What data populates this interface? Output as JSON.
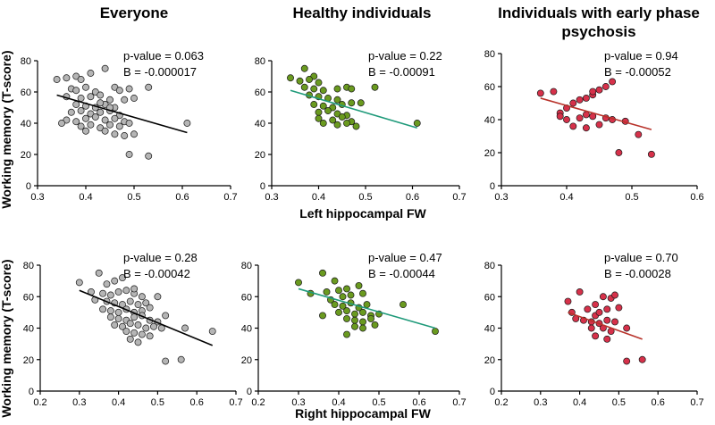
{
  "figure": {
    "column_titles": [
      "Everyone",
      "Healthy individuals",
      "Individuals with early phase psychosis"
    ],
    "row_ylabels": [
      "Working memory (T-score)",
      "Working memory (T-score)"
    ],
    "row_xlabels": [
      "Left hippocampal FW",
      "Right hippocampal FW"
    ]
  },
  "chart_data": [
    {
      "id": "left-everyone",
      "type": "scatter",
      "title": "Everyone",
      "ylabel": "Working memory (T-score)",
      "xlabel": "",
      "xlim": [
        0.3,
        0.7
      ],
      "ylim": [
        0,
        80
      ],
      "xticks": [
        0.3,
        0.4,
        0.5,
        0.6,
        0.7
      ],
      "xtick_labels": [
        "0.3",
        "0.4",
        "0.5",
        "0.6",
        "0.7"
      ],
      "yticks": [
        0,
        20,
        40,
        60,
        80
      ],
      "ytick_labels": [
        "0",
        "20",
        "40",
        "60",
        "80"
      ],
      "point_color": "#b5b5b5",
      "points": [
        [
          0.34,
          68
        ],
        [
          0.36,
          69
        ],
        [
          0.38,
          70
        ],
        [
          0.39,
          68
        ],
        [
          0.41,
          72
        ],
        [
          0.44,
          75
        ],
        [
          0.37,
          62
        ],
        [
          0.38,
          61
        ],
        [
          0.4,
          63
        ],
        [
          0.42,
          60
        ],
        [
          0.46,
          63
        ],
        [
          0.47,
          61
        ],
        [
          0.49,
          62
        ],
        [
          0.36,
          57
        ],
        [
          0.39,
          56
        ],
        [
          0.41,
          57
        ],
        [
          0.43,
          58
        ],
        [
          0.45,
          55
        ],
        [
          0.38,
          52
        ],
        [
          0.4,
          51
        ],
        [
          0.42,
          50
        ],
        [
          0.44,
          52
        ],
        [
          0.46,
          50
        ],
        [
          0.48,
          55
        ],
        [
          0.5,
          56
        ],
        [
          0.37,
          47
        ],
        [
          0.39,
          48
        ],
        [
          0.41,
          46
        ],
        [
          0.43,
          47
        ],
        [
          0.45,
          48
        ],
        [
          0.47,
          45
        ],
        [
          0.36,
          42
        ],
        [
          0.38,
          41
        ],
        [
          0.4,
          43
        ],
        [
          0.42,
          44
        ],
        [
          0.44,
          42
        ],
        [
          0.46,
          43
        ],
        [
          0.48,
          41
        ],
        [
          0.35,
          40
        ],
        [
          0.39,
          38
        ],
        [
          0.41,
          39
        ],
        [
          0.43,
          37
        ],
        [
          0.45,
          39
        ],
        [
          0.47,
          38
        ],
        [
          0.49,
          40
        ],
        [
          0.4,
          35
        ],
        [
          0.44,
          35
        ],
        [
          0.46,
          33
        ],
        [
          0.48,
          32
        ],
        [
          0.5,
          33
        ],
        [
          0.49,
          20
        ],
        [
          0.53,
          19
        ],
        [
          0.53,
          63
        ],
        [
          0.61,
          40
        ],
        [
          0.45,
          50
        ],
        [
          0.43,
          53
        ]
      ],
      "fit_line": [
        [
          0.34,
          58
        ],
        [
          0.61,
          34
        ]
      ],
      "fit_color": "#000000",
      "stats": [
        "p-value = 0.063",
        "B = -0.000017"
      ]
    },
    {
      "id": "left-healthy",
      "type": "scatter",
      "title": "Healthy individuals",
      "ylabel": "",
      "xlabel": "Left hippocampal FW",
      "xlim": [
        0.3,
        0.7
      ],
      "ylim": [
        0,
        80
      ],
      "xticks": [
        0.3,
        0.4,
        0.5,
        0.6,
        0.7
      ],
      "xtick_labels": [
        "0.3",
        "0.4",
        "0.5",
        "0.6",
        "0.7"
      ],
      "yticks": [
        0,
        20,
        40,
        60,
        80
      ],
      "ytick_labels": [
        "0",
        "20",
        "40",
        "60",
        "80"
      ],
      "point_color": "#6a9a1f",
      "points": [
        [
          0.34,
          69
        ],
        [
          0.37,
          75
        ],
        [
          0.39,
          70
        ],
        [
          0.36,
          67
        ],
        [
          0.38,
          68
        ],
        [
          0.4,
          66
        ],
        [
          0.37,
          63
        ],
        [
          0.39,
          62
        ],
        [
          0.41,
          61
        ],
        [
          0.44,
          62
        ],
        [
          0.46,
          63
        ],
        [
          0.47,
          62
        ],
        [
          0.38,
          58
        ],
        [
          0.4,
          57
        ],
        [
          0.42,
          56
        ],
        [
          0.44,
          55
        ],
        [
          0.39,
          52
        ],
        [
          0.41,
          51
        ],
        [
          0.43,
          50
        ],
        [
          0.45,
          52
        ],
        [
          0.47,
          53
        ],
        [
          0.49,
          53
        ],
        [
          0.4,
          47
        ],
        [
          0.42,
          48
        ],
        [
          0.44,
          46
        ],
        [
          0.46,
          45
        ],
        [
          0.4,
          43
        ],
        [
          0.43,
          42
        ],
        [
          0.45,
          44
        ],
        [
          0.47,
          41
        ],
        [
          0.41,
          40
        ],
        [
          0.44,
          39
        ],
        [
          0.46,
          40
        ],
        [
          0.48,
          38
        ],
        [
          0.52,
          63
        ],
        [
          0.61,
          40
        ]
      ],
      "fit_line": [
        [
          0.34,
          61
        ],
        [
          0.61,
          37
        ]
      ],
      "fit_color": "#1f9a7a",
      "stats": [
        "p-value = 0.22",
        "B = -0.00091"
      ]
    },
    {
      "id": "left-psychosis",
      "type": "scatter",
      "title": "Individuals with early phase psychosis",
      "ylabel": "",
      "xlabel": "",
      "xlim": [
        0.3,
        0.6
      ],
      "ylim": [
        0,
        80
      ],
      "xticks": [
        0.3,
        0.4,
        0.5,
        0.6
      ],
      "xtick_labels": [
        "0.3",
        "0.4",
        "0.5",
        "0.6"
      ],
      "yticks": [
        0,
        20,
        40,
        60,
        80
      ],
      "ytick_labels": [
        "0",
        "20",
        "40",
        "60",
        "80"
      ],
      "point_color": "#d6314a",
      "points": [
        [
          0.36,
          56
        ],
        [
          0.39,
          44
        ],
        [
          0.4,
          47
        ],
        [
          0.41,
          50
        ],
        [
          0.42,
          52
        ],
        [
          0.43,
          53
        ],
        [
          0.44,
          55
        ],
        [
          0.45,
          58
        ],
        [
          0.46,
          60
        ],
        [
          0.47,
          63
        ],
        [
          0.39,
          42
        ],
        [
          0.4,
          40
        ],
        [
          0.42,
          41
        ],
        [
          0.43,
          43
        ],
        [
          0.44,
          42
        ],
        [
          0.46,
          41
        ],
        [
          0.47,
          40
        ],
        [
          0.41,
          36
        ],
        [
          0.43,
          35
        ],
        [
          0.45,
          37
        ],
        [
          0.49,
          39
        ],
        [
          0.51,
          31
        ],
        [
          0.48,
          20
        ],
        [
          0.53,
          19
        ],
        [
          0.38,
          57
        ],
        [
          0.44,
          57
        ]
      ],
      "fit_line": [
        [
          0.36,
          53
        ],
        [
          0.53,
          34
        ]
      ],
      "fit_color": "#b8322a",
      "stats": [
        "p-value = 0.94",
        "B = -0.00052"
      ]
    },
    {
      "id": "right-everyone",
      "type": "scatter",
      "title": "",
      "ylabel": "Working memory (T-score)",
      "xlabel": "",
      "xlim": [
        0.2,
        0.7
      ],
      "ylim": [
        0,
        80
      ],
      "xticks": [
        0.2,
        0.3,
        0.4,
        0.5,
        0.6,
        0.7
      ],
      "xtick_labels": [
        "0.2",
        "0.3",
        "0.4",
        "0.5",
        "0.6",
        "0.7"
      ],
      "yticks": [
        0,
        20,
        40,
        60,
        80
      ],
      "ytick_labels": [
        "0",
        "20",
        "40",
        "60",
        "80"
      ],
      "point_color": "#b5b5b5",
      "points": [
        [
          0.3,
          69
        ],
        [
          0.35,
          75
        ],
        [
          0.37,
          68
        ],
        [
          0.39,
          70
        ],
        [
          0.41,
          72
        ],
        [
          0.33,
          63
        ],
        [
          0.36,
          62
        ],
        [
          0.38,
          61
        ],
        [
          0.4,
          63
        ],
        [
          0.42,
          64
        ],
        [
          0.44,
          62
        ],
        [
          0.46,
          60
        ],
        [
          0.34,
          58
        ],
        [
          0.37,
          57
        ],
        [
          0.39,
          56
        ],
        [
          0.41,
          55
        ],
        [
          0.43,
          57
        ],
        [
          0.45,
          55
        ],
        [
          0.47,
          56
        ],
        [
          0.36,
          52
        ],
        [
          0.38,
          51
        ],
        [
          0.4,
          50
        ],
        [
          0.42,
          52
        ],
        [
          0.44,
          50
        ],
        [
          0.46,
          51
        ],
        [
          0.48,
          53
        ],
        [
          0.38,
          47
        ],
        [
          0.4,
          46
        ],
        [
          0.42,
          45
        ],
        [
          0.44,
          47
        ],
        [
          0.46,
          48
        ],
        [
          0.48,
          45
        ],
        [
          0.5,
          44
        ],
        [
          0.39,
          42
        ],
        [
          0.41,
          41
        ],
        [
          0.43,
          43
        ],
        [
          0.45,
          42
        ],
        [
          0.47,
          40
        ],
        [
          0.49,
          41
        ],
        [
          0.51,
          40
        ],
        [
          0.42,
          38
        ],
        [
          0.44,
          37
        ],
        [
          0.46,
          36
        ],
        [
          0.48,
          35
        ],
        [
          0.43,
          33
        ],
        [
          0.45,
          31
        ],
        [
          0.52,
          19
        ],
        [
          0.56,
          20
        ],
        [
          0.57,
          40
        ],
        [
          0.64,
          38
        ],
        [
          0.5,
          60
        ],
        [
          0.52,
          48
        ],
        [
          0.44,
          65
        ]
      ],
      "fit_line": [
        [
          0.3,
          64
        ],
        [
          0.64,
          29
        ]
      ],
      "fit_color": "#000000",
      "stats": [
        "p-value = 0.28",
        "B = -0.00042"
      ]
    },
    {
      "id": "right-healthy",
      "type": "scatter",
      "title": "",
      "ylabel": "",
      "xlabel": "Right hippocampal FW",
      "xlim": [
        0.2,
        0.7
      ],
      "ylim": [
        0,
        80
      ],
      "xticks": [
        0.2,
        0.3,
        0.4,
        0.5,
        0.6,
        0.7
      ],
      "xtick_labels": [
        "0.2",
        "0.3",
        "0.4",
        "0.5",
        "0.6",
        "0.7"
      ],
      "yticks": [
        0,
        20,
        40,
        60,
        80
      ],
      "ytick_labels": [
        "0",
        "20",
        "40",
        "60",
        "80"
      ],
      "point_color": "#6a9a1f",
      "points": [
        [
          0.3,
          69
        ],
        [
          0.36,
          75
        ],
        [
          0.39,
          70
        ],
        [
          0.33,
          62
        ],
        [
          0.37,
          63
        ],
        [
          0.4,
          64
        ],
        [
          0.42,
          65
        ],
        [
          0.45,
          67
        ],
        [
          0.38,
          58
        ],
        [
          0.41,
          60
        ],
        [
          0.43,
          61
        ],
        [
          0.46,
          62
        ],
        [
          0.39,
          55
        ],
        [
          0.41,
          54
        ],
        [
          0.43,
          56
        ],
        [
          0.45,
          53
        ],
        [
          0.47,
          55
        ],
        [
          0.4,
          50
        ],
        [
          0.42,
          51
        ],
        [
          0.44,
          49
        ],
        [
          0.46,
          50
        ],
        [
          0.48,
          48
        ],
        [
          0.42,
          46
        ],
        [
          0.44,
          45
        ],
        [
          0.46,
          44
        ],
        [
          0.48,
          46
        ],
        [
          0.44,
          41
        ],
        [
          0.46,
          40
        ],
        [
          0.49,
          42
        ],
        [
          0.5,
          49
        ],
        [
          0.42,
          36
        ],
        [
          0.56,
          55
        ],
        [
          0.64,
          38
        ],
        [
          0.36,
          48
        ]
      ],
      "fit_line": [
        [
          0.3,
          65
        ],
        [
          0.64,
          40
        ]
      ],
      "fit_color": "#1f9a7a",
      "stats": [
        "p-value = 0.47",
        "B = -0.00044"
      ]
    },
    {
      "id": "right-psychosis",
      "type": "scatter",
      "title": "",
      "ylabel": "",
      "xlabel": "",
      "xlim": [
        0.2,
        0.7
      ],
      "ylim": [
        0,
        80
      ],
      "xticks": [
        0.2,
        0.3,
        0.4,
        0.5,
        0.6,
        0.7
      ],
      "xtick_labels": [
        "0.2",
        "0.3",
        "0.4",
        "0.5",
        "0.6",
        "0.7"
      ],
      "yticks": [
        0,
        20,
        40,
        60,
        80
      ],
      "ytick_labels": [
        "0",
        "20",
        "40",
        "60",
        "80"
      ],
      "point_color": "#d6314a",
      "points": [
        [
          0.37,
          57
        ],
        [
          0.4,
          63
        ],
        [
          0.44,
          55
        ],
        [
          0.46,
          60
        ],
        [
          0.48,
          59
        ],
        [
          0.49,
          61
        ],
        [
          0.38,
          50
        ],
        [
          0.42,
          52
        ],
        [
          0.44,
          48
        ],
        [
          0.45,
          50
        ],
        [
          0.47,
          52
        ],
        [
          0.5,
          53
        ],
        [
          0.39,
          46
        ],
        [
          0.41,
          45
        ],
        [
          0.43,
          44
        ],
        [
          0.45,
          43
        ],
        [
          0.47,
          45
        ],
        [
          0.49,
          44
        ],
        [
          0.43,
          40
        ],
        [
          0.46,
          40
        ],
        [
          0.48,
          38
        ],
        [
          0.52,
          40
        ],
        [
          0.44,
          35
        ],
        [
          0.47,
          33
        ],
        [
          0.52,
          19
        ],
        [
          0.56,
          20
        ]
      ],
      "fit_line": [
        [
          0.37,
          50
        ],
        [
          0.56,
          33
        ]
      ],
      "fit_color": "#b8322a",
      "stats": [
        "p-value = 0.70",
        "B = -0.00028"
      ]
    }
  ]
}
